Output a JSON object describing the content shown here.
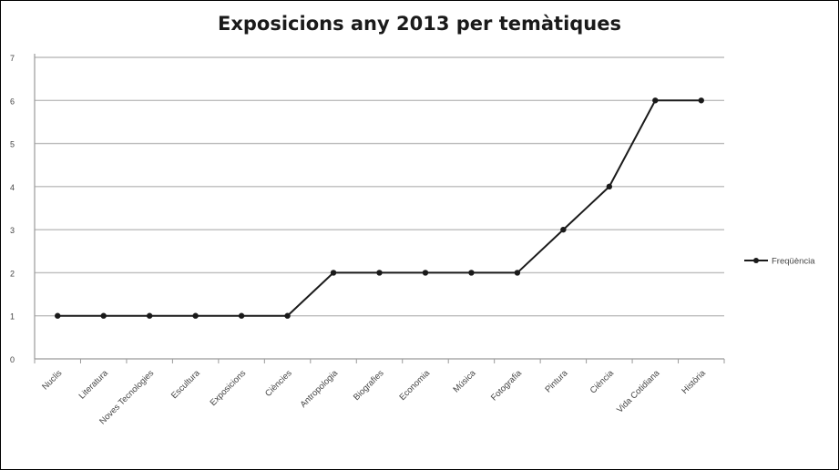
{
  "chart_data": {
    "type": "line",
    "title": "Exposicions any 2013 per temàtiques",
    "xlabel": "",
    "ylabel": "",
    "ylim": [
      0,
      7
    ],
    "yticks": [
      "0",
      "1",
      "2",
      "3",
      "4",
      "5",
      "6",
      "7"
    ],
    "grid": true,
    "legend_position": "right",
    "categories": [
      "Nuclis",
      "Literatura",
      "Noves Tecnologies",
      "Escultura",
      "Exposicions",
      "Ciències",
      "Antropologia",
      "Biografies",
      "Economia",
      "Música",
      "Fotografia",
      "Pintura",
      "Ciència",
      "Vida Cotidiana",
      "Història"
    ],
    "series": [
      {
        "name": "Freqüència",
        "values": [
          1,
          1,
          1,
          1,
          1,
          1,
          2,
          2,
          2,
          2,
          2,
          3,
          4,
          6,
          6
        ],
        "color": "#1a1a1a"
      }
    ]
  }
}
